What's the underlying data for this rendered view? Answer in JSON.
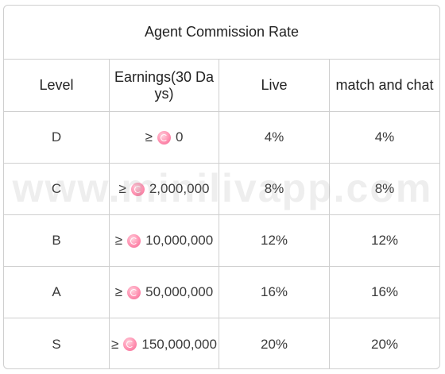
{
  "table": {
    "title": "Agent Commission Rate",
    "headers": [
      "Level",
      "Earnings(30 Da ys)",
      "Live",
      "match and chat"
    ],
    "rows": [
      {
        "level": "D",
        "symbol": "≥",
        "amount": "0",
        "live": "4%",
        "match_chat": "4%"
      },
      {
        "level": "C",
        "symbol": "≥",
        "amount": "2,000,000",
        "live": "8%",
        "match_chat": "8%"
      },
      {
        "level": "B",
        "symbol": "≥",
        "amount": "10,000,000",
        "live": "12%",
        "match_chat": "12%"
      },
      {
        "level": "A",
        "symbol": "≥",
        "amount": "50,000,000",
        "live": "16%",
        "match_chat": "16%"
      },
      {
        "level": "S",
        "symbol": "≥",
        "amount": "150,000,000",
        "live": "20%",
        "match_chat": "20%"
      }
    ],
    "coin_icon": "coin-icon",
    "coin_color": "#ff8fb0",
    "border_color": "#cfcfcf"
  },
  "watermark": "www.minilivapp.com"
}
